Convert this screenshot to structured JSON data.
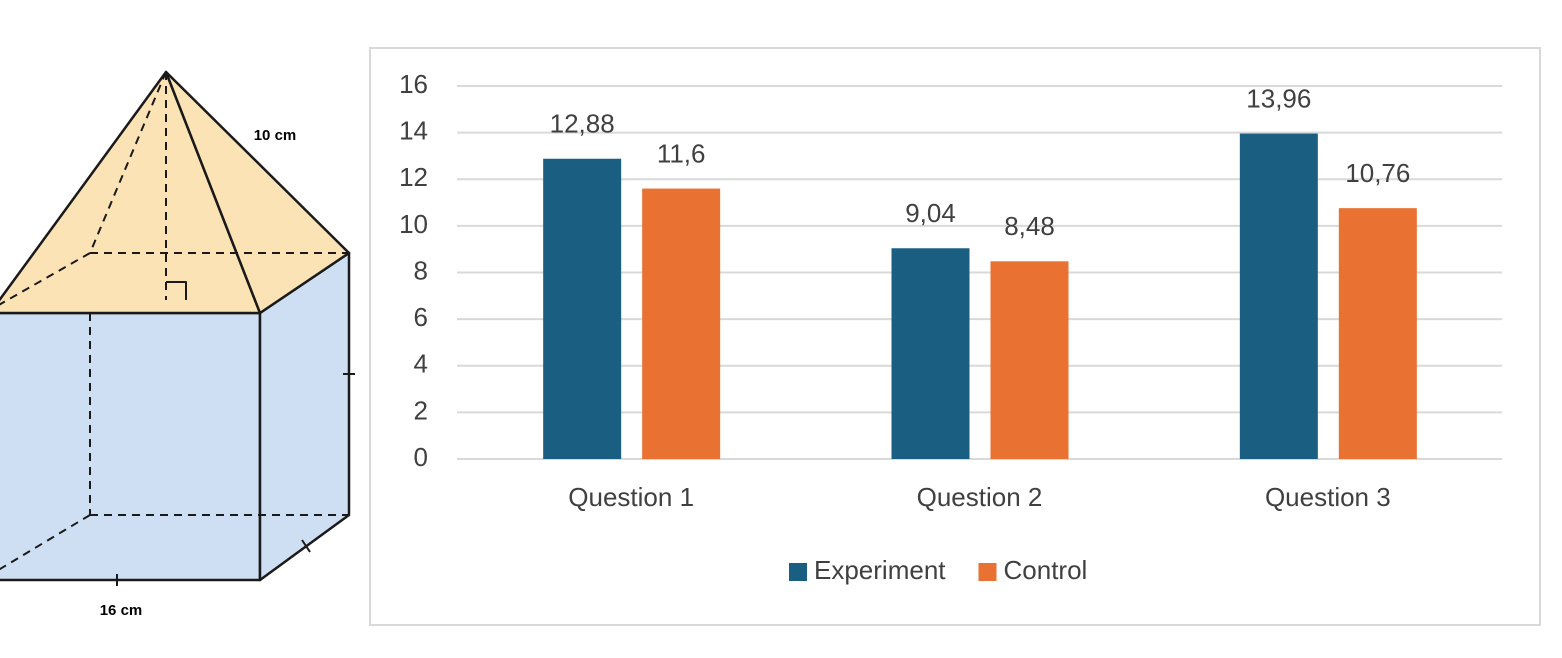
{
  "figure": {
    "edge_label": "10 cm",
    "base_label": "16 cm"
  },
  "chart_data": {
    "type": "bar",
    "categories": [
      "Question 1",
      "Question 2",
      "Question 3"
    ],
    "series": [
      {
        "name": "Experiment",
        "color": "#1a5f82",
        "values": [
          12.88,
          9.04,
          13.96
        ],
        "value_labels": [
          "12,88",
          "9,04",
          "13,96"
        ]
      },
      {
        "name": "Control",
        "color": "#e97132",
        "values": [
          11.6,
          8.48,
          10.76
        ],
        "value_labels": [
          "11,6",
          "8,48",
          "10,76"
        ]
      }
    ],
    "ylim": [
      0,
      16
    ],
    "yticks": [
      0,
      2,
      4,
      6,
      8,
      10,
      12,
      14,
      16
    ],
    "grid": true,
    "legend": "bottom"
  }
}
